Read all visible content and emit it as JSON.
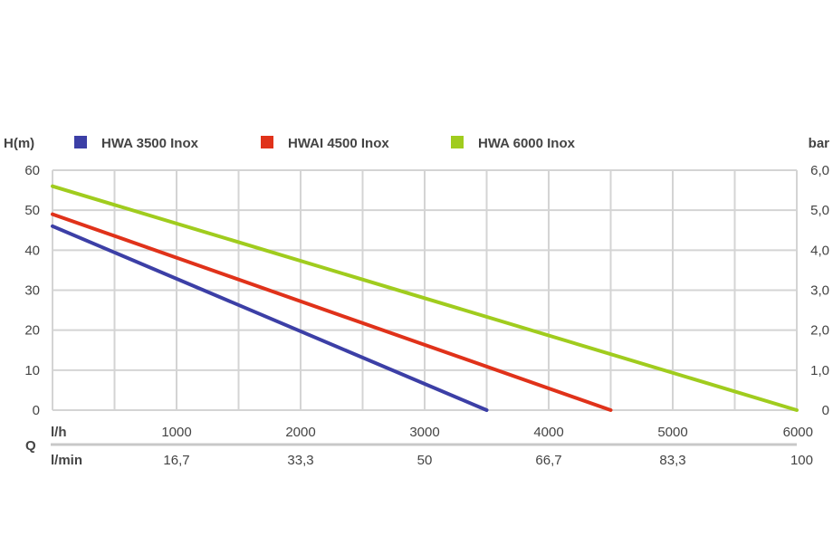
{
  "chart_data": {
    "type": "line",
    "ylabel": "H(m)",
    "ylabel_right": "bar",
    "q_label": "Q",
    "x_unit_primary": "l/h",
    "x_unit_secondary": "l/min",
    "xlim": [
      0,
      6000
    ],
    "ylim": [
      0,
      60
    ],
    "x_ticks": [
      1000,
      2000,
      3000,
      4000,
      5000,
      6000
    ],
    "x_tick_labels": [
      "1000",
      "2000",
      "3000",
      "4000",
      "5000",
      "6000"
    ],
    "x_secondary_tick_labels": [
      "16,7",
      "33,3",
      "50",
      "66,7",
      "83,3",
      "100"
    ],
    "y_ticks": [
      0,
      10,
      20,
      30,
      40,
      50,
      60
    ],
    "y_tick_labels": [
      "0",
      "10",
      "20",
      "30",
      "40",
      "50",
      "60"
    ],
    "y_right_tick_labels": [
      "0",
      "1,0",
      "2,0",
      "3,0",
      "4,0",
      "5,0",
      "6,0"
    ],
    "grid": true,
    "legend_position": "top",
    "series": [
      {
        "name": "HWA 3500 Inox",
        "color": "#3c3fa6",
        "x": [
          0,
          3500
        ],
        "y": [
          46,
          0
        ]
      },
      {
        "name": "HWAI 4500 Inox",
        "color": "#e0321a",
        "x": [
          0,
          4500
        ],
        "y": [
          49,
          0
        ]
      },
      {
        "name": "HWA 6000 Inox",
        "color": "#a0cc1e",
        "x": [
          0,
          6000
        ],
        "y": [
          56,
          0
        ]
      }
    ]
  }
}
